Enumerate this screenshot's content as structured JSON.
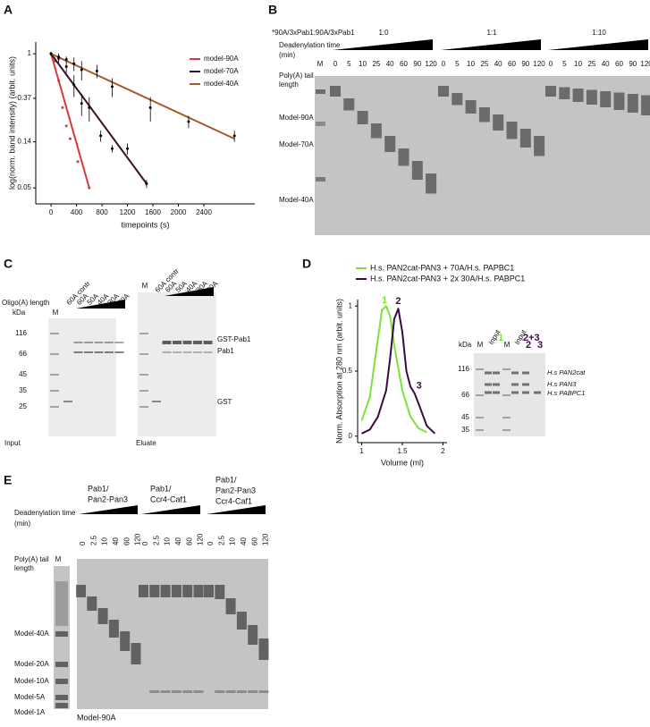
{
  "panel_labels": [
    "A",
    "B",
    "C",
    "D",
    "E"
  ],
  "chart_data": [
    {
      "type": "scatter",
      "xlabel": "timepoints (s)",
      "ylabel": "log(norm. band intensity) (arbit. units)",
      "log_y": true,
      "xlim": [
        -240,
        3200
      ],
      "ylim": [
        0.035,
        1.3
      ],
      "xticks": [
        0,
        400,
        800,
        1200,
        1600,
        2000,
        2400
      ],
      "yticks": [
        0.05,
        0.14,
        0.37,
        1
      ],
      "legend": "upper right",
      "series": [
        {
          "name": "model-90A",
          "color": "#d63a3a",
          "x": [
            0,
            60,
            120,
            180,
            240,
            300,
            420,
            600
          ],
          "values": [
            1,
            0.85,
            0.55,
            0.3,
            0.2,
            0.15,
            0.09,
            0.05
          ],
          "fit_x": [
            0,
            600
          ],
          "fit_values": [
            1,
            0.05
          ]
        },
        {
          "name": "model-70A",
          "color": "#3b1326",
          "x": [
            0,
            120,
            240,
            360,
            480,
            600,
            780,
            960,
            1200,
            1500
          ],
          "values": [
            1,
            0.9,
            0.75,
            0.5,
            0.33,
            0.3,
            0.16,
            0.12,
            0.12,
            0.055
          ],
          "errors": [
            0.05,
            0.08,
            0.1,
            0.12,
            0.08,
            0.08,
            0.02,
            0.01,
            0.015,
            0.005
          ],
          "fit_x": [
            0,
            1500
          ],
          "fit_values": [
            1,
            0.055
          ]
        },
        {
          "name": "model-40A",
          "color": "#a8592b",
          "x": [
            0,
            120,
            240,
            360,
            480,
            720,
            960,
            1560,
            2160,
            2880
          ],
          "values": [
            1,
            0.93,
            0.88,
            0.8,
            0.7,
            0.68,
            0.48,
            0.3,
            0.22,
            0.16
          ],
          "errors": [
            0.03,
            0.08,
            0.06,
            0.12,
            0.15,
            0.1,
            0.1,
            0.08,
            0.03,
            0.02
          ],
          "fit_x": [
            0,
            2880
          ],
          "fit_values": [
            1,
            0.15
          ]
        }
      ]
    },
    {
      "type": "line",
      "xlabel": "Volume (ml)",
      "ylabel": "Norm. Absorption at 280 nm (arbit. units)",
      "xlim": [
        0.95,
        2.05
      ],
      "ylim": [
        -0.05,
        1.05
      ],
      "xticks": [
        1,
        1.5,
        2
      ],
      "yticks": [
        0,
        0.5,
        1
      ],
      "series": [
        {
          "name": "H.s. PAN2cat-PAN3 + 70A/H.s. PAPBC1",
          "color": "#7ce23a",
          "x": [
            1.0,
            1.1,
            1.2,
            1.25,
            1.3,
            1.35,
            1.4,
            1.5,
            1.6,
            1.7,
            1.8
          ],
          "values": [
            0.12,
            0.3,
            0.75,
            0.97,
            1.0,
            0.92,
            0.7,
            0.35,
            0.15,
            0.06,
            0.03
          ]
        },
        {
          "name": "H.s. PAN2cat-PAN3 + 2x 30A/H.s. PABPC1",
          "color": "#3b0a45",
          "x": [
            1.0,
            1.1,
            1.2,
            1.3,
            1.35,
            1.4,
            1.45,
            1.5,
            1.55,
            1.6,
            1.65,
            1.7,
            1.8,
            1.9
          ],
          "values": [
            0.02,
            0.05,
            0.15,
            0.35,
            0.6,
            0.9,
            0.98,
            0.8,
            0.5,
            0.38,
            0.33,
            0.25,
            0.08,
            0.02
          ]
        }
      ],
      "annotations": [
        {
          "text": "1",
          "x": 1.28,
          "series": 0
        },
        {
          "text": "2",
          "x": 1.45,
          "series": 1
        },
        {
          "text": "3",
          "x": 1.65,
          "series": 1
        }
      ]
    }
  ],
  "panel_b": {
    "title": "*90A/3xPab1:90A/3xPab1",
    "ratios": [
      "1:0",
      "1:1",
      "1:10"
    ],
    "time_label": [
      "Deadenylation time",
      "(min)"
    ],
    "times": [
      "0",
      "5",
      "10",
      "25",
      "40",
      "60",
      "90",
      "120"
    ],
    "marker": "M",
    "tail_label": [
      "Poly(A) tail",
      "length"
    ],
    "bands": [
      "Model-90A",
      "Model-70A",
      "Model-40A"
    ]
  },
  "panel_c": {
    "oligo_label": "Oligo(A) length",
    "kda": "kDa",
    "marker": "M",
    "lanes": [
      "60A contr",
      "60A",
      "50A",
      "40A",
      "30A",
      "20A"
    ],
    "mw": [
      "116",
      "66",
      "45",
      "35",
      "25"
    ],
    "proteins": [
      "GST-Pab1",
      "Pab1",
      "GST"
    ],
    "gels": [
      "Input",
      "Eluate"
    ]
  },
  "panel_d_gel": {
    "kda": "kDa",
    "marker": "M",
    "input": "Input",
    "fractions": [
      "1",
      "2+3",
      "2",
      "3"
    ],
    "mw": [
      "116",
      "66",
      "45",
      "35"
    ],
    "proteins": [
      "H.s PAN2cat",
      "H.s PAN3",
      "H.s PABPC1"
    ]
  },
  "panel_e": {
    "time_label": [
      "Deadenylation time",
      "(min)"
    ],
    "tail_label": [
      "Poly(A) tail",
      "length"
    ],
    "marker": "M",
    "groups": [
      [
        "Pab1/",
        "Pan2-Pan3"
      ],
      [
        "Pab1/",
        "Ccr4-Caf1"
      ],
      [
        "Pab1/",
        "Pan2-Pan3",
        "Ccr4-Caf1"
      ]
    ],
    "times": [
      "0",
      "2.5",
      "10",
      "40",
      "60",
      "120"
    ],
    "ladder": [
      "Model-40A",
      "Model-20A",
      "Model-10A",
      "Model-5A",
      "Model-1A"
    ],
    "substrate": "Model-90A"
  }
}
